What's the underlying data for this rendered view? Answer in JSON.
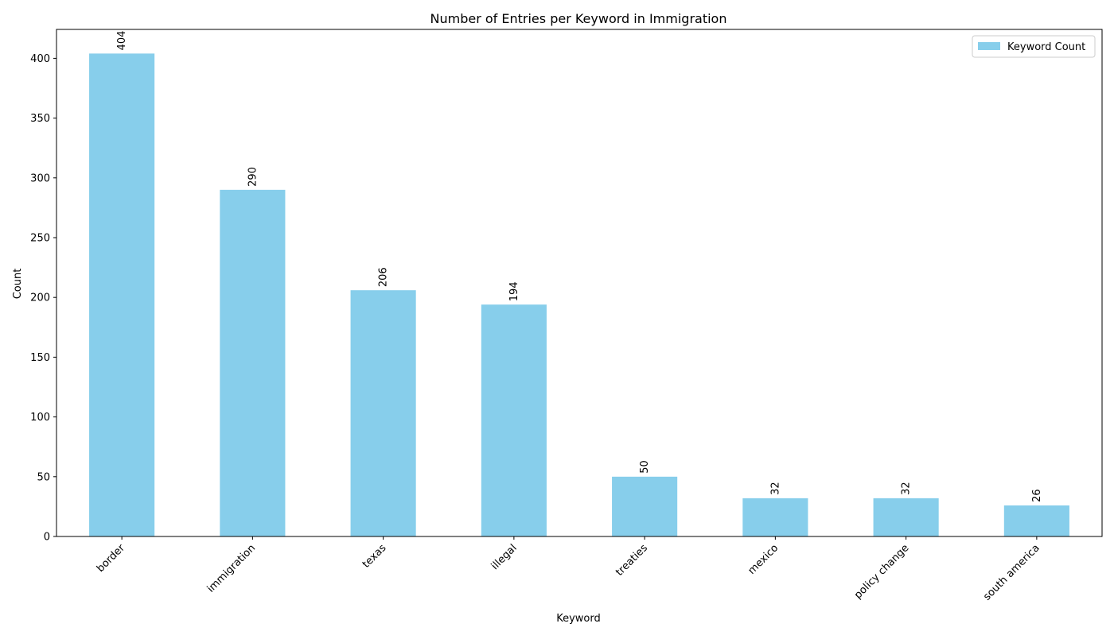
{
  "chart_data": {
    "type": "bar",
    "title": "Number of Entries per Keyword in Immigration",
    "xlabel": "Keyword",
    "ylabel": "Count",
    "categories": [
      "border",
      "immigration",
      "texas",
      "illegal",
      "treaties",
      "mexico",
      "policy change",
      "south america"
    ],
    "series": [
      {
        "name": "Keyword Count",
        "values": [
          404,
          290,
          206,
          194,
          50,
          32,
          32,
          26
        ],
        "color": "#87ceeb"
      }
    ],
    "ylim": [
      0,
      424.2
    ],
    "yticks": [
      0,
      50,
      100,
      150,
      200,
      250,
      300,
      350,
      400
    ],
    "grid": false,
    "legend_position": "top-right",
    "data_labels": true,
    "xtick_rotation": 45
  }
}
